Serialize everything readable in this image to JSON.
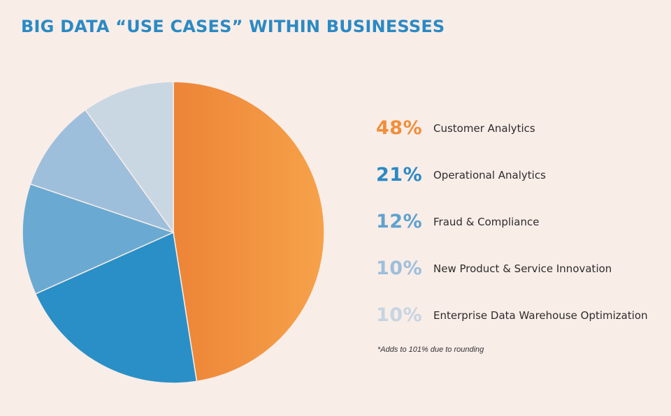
{
  "chart_data": {
    "type": "pie",
    "title": "BIG DATA “USE CASES” WITHIN BUSINESSES",
    "unit": "%",
    "footnote": "*Adds to 101% due to rounding",
    "slices": [
      {
        "label": "Customer Analytics",
        "value": 48,
        "pct_label": "48%",
        "color": "#f39a48",
        "text_color": "#f08f3a"
      },
      {
        "label": "Operational Analytics",
        "value": 21,
        "pct_label": "21%",
        "color": "#2a8fc6",
        "text_color": "#2a8ac4"
      },
      {
        "label": "Fraud & Compliance",
        "value": 12,
        "pct_label": "12%",
        "color": "#6aaad2",
        "text_color": "#5fa2cf"
      },
      {
        "label": "New Product & Service Innovation",
        "value": 10,
        "pct_label": "10%",
        "color": "#9dbfdb",
        "text_color": "#9dbfdb"
      },
      {
        "label": "Enterprise Data Warehouse Optimization",
        "value": 10,
        "pct_label": "10%",
        "color": "#c9d7e3",
        "text_color": "#c6d5e2"
      }
    ]
  }
}
